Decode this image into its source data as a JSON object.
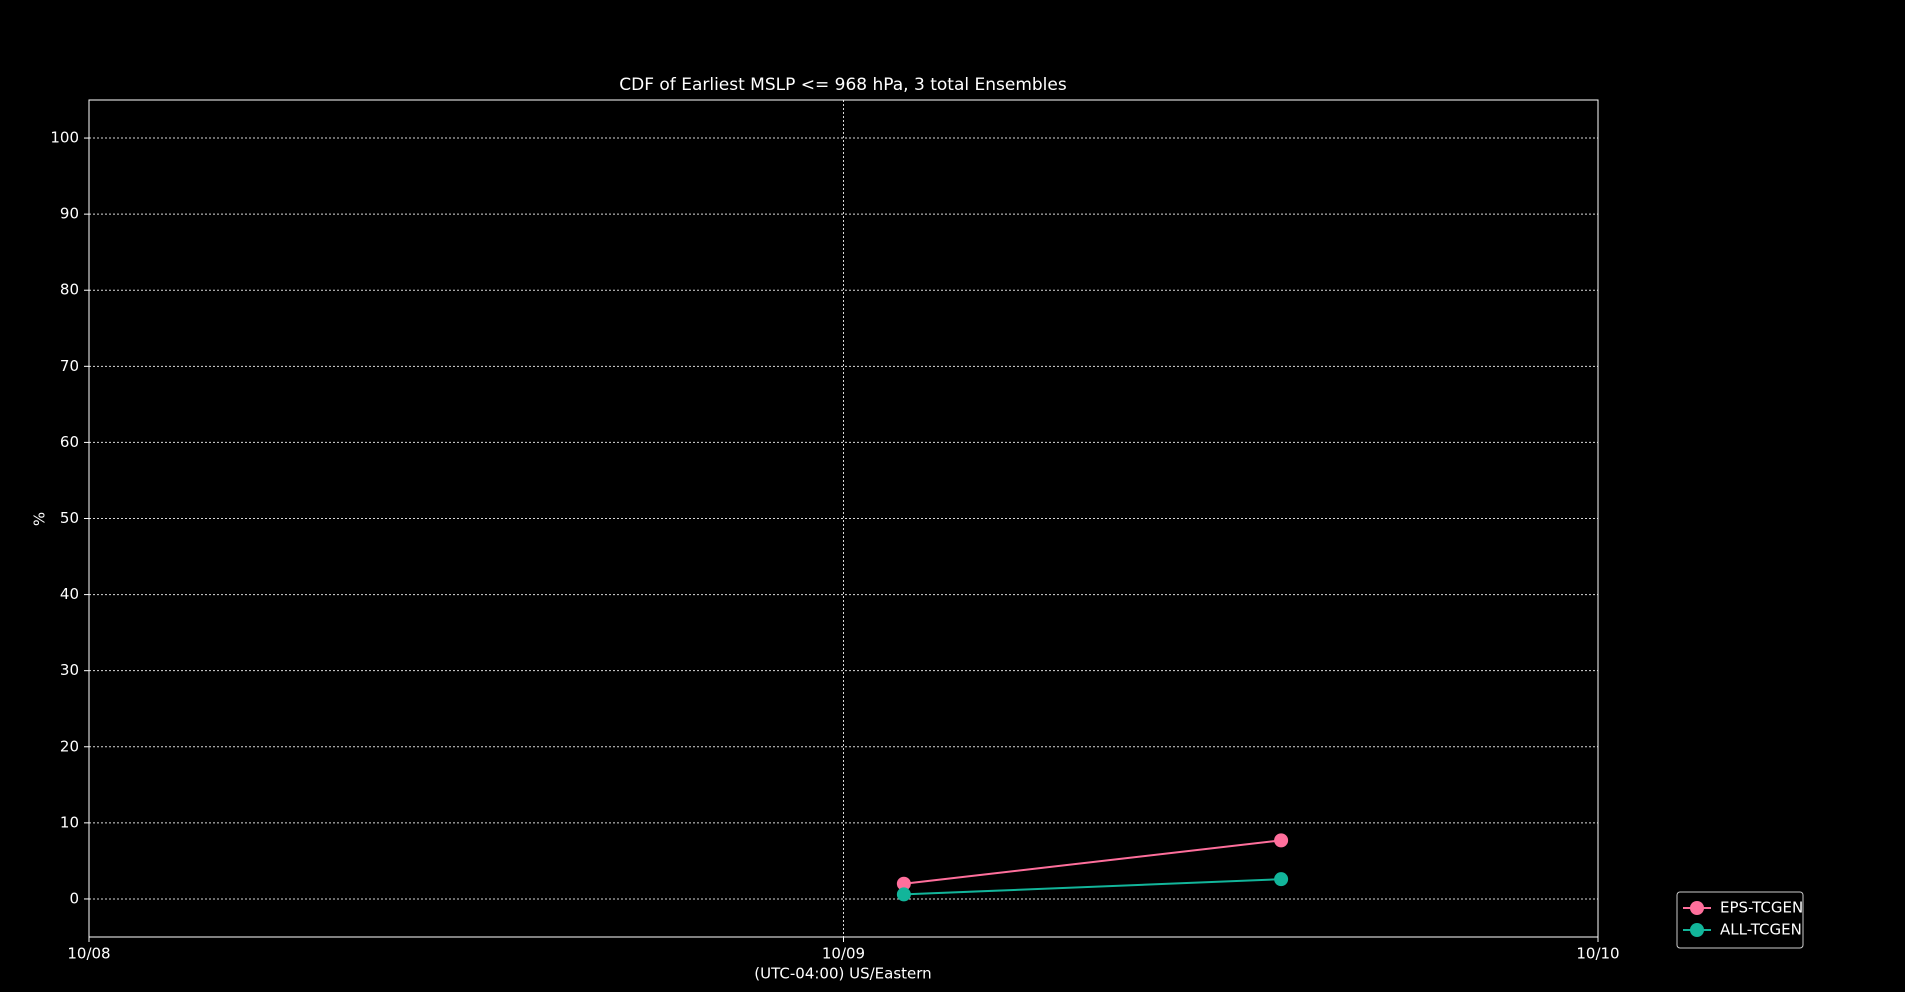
{
  "chart_data": {
    "type": "line",
    "title": "CDF of Earliest MSLP <= 968 hPa, 3 total Ensembles",
    "xlabel": "(UTC-04:00) US/Eastern",
    "ylabel": "%",
    "x": [
      9.08,
      9.58
    ],
    "xlim": [
      8,
      10
    ],
    "xticks": [
      {
        "value": 8,
        "label": "10/08"
      },
      {
        "value": 9,
        "label": "10/09"
      },
      {
        "value": 10,
        "label": "10/10"
      }
    ],
    "ylim": [
      -5,
      105
    ],
    "yticks": [
      0,
      10,
      20,
      30,
      40,
      50,
      60,
      70,
      80,
      90,
      100
    ],
    "grid": true,
    "legend": "lower right outside",
    "series": [
      {
        "name": "EPS-TCGEN",
        "color": "#ff6f9c",
        "values": [
          2,
          7.7
        ]
      },
      {
        "name": "ALL-TCGEN",
        "color": "#12b59a",
        "values": [
          0.6,
          2.6
        ]
      }
    ]
  }
}
